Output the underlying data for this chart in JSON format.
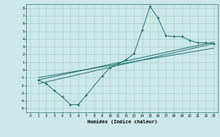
{
  "xlabel": "Humidex (Indice chaleur)",
  "ylabel": "",
  "bg_color": "#cce8e8",
  "grid_color": "#aacece",
  "line_color": "#1a6b6b",
  "xlim": [
    -0.5,
    23.5
  ],
  "ylim": [
    -5.5,
    8.5
  ],
  "xticks": [
    0,
    1,
    2,
    3,
    4,
    5,
    6,
    7,
    8,
    9,
    10,
    11,
    12,
    13,
    14,
    15,
    16,
    17,
    18,
    19,
    20,
    21,
    22,
    23
  ],
  "yticks": [
    -5,
    -4,
    -3,
    -2,
    -1,
    0,
    1,
    2,
    3,
    4,
    5,
    6,
    7,
    8
  ],
  "line1_x": [
    1,
    2,
    3,
    4,
    5,
    6,
    7,
    9,
    10,
    11,
    12,
    13,
    14,
    15,
    16,
    17,
    18,
    19,
    20,
    21,
    22,
    23
  ],
  "line1_y": [
    -1.3,
    -1.8,
    -2.7,
    -3.5,
    -4.5,
    -4.5,
    -3.3,
    -0.8,
    0.3,
    0.8,
    1.3,
    2.1,
    5.1,
    8.2,
    6.7,
    4.4,
    4.3,
    4.3,
    3.8,
    3.5,
    3.5,
    3.4
  ],
  "line2_x": [
    1,
    23
  ],
  "line2_y": [
    -1.8,
    3.4
  ],
  "line3_x": [
    1,
    23
  ],
  "line3_y": [
    -1.3,
    3.6
  ],
  "line4_x": [
    1,
    23
  ],
  "line4_y": [
    -1.0,
    2.8
  ]
}
